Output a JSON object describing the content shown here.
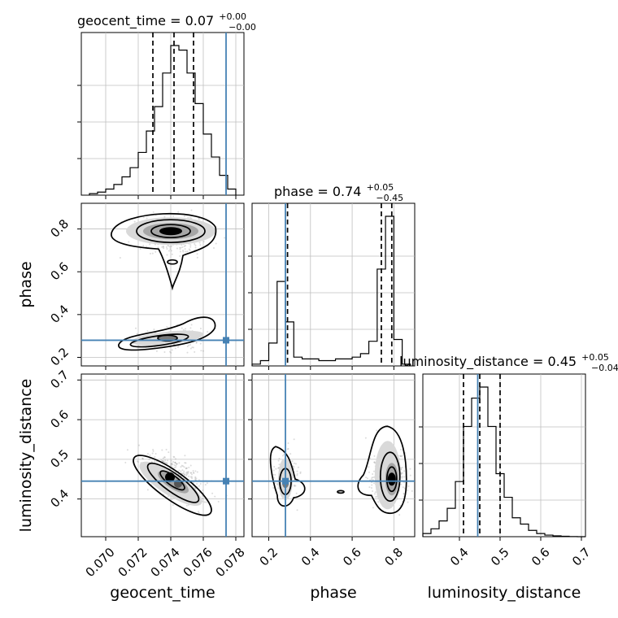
{
  "chart_data": {
    "type": "corner",
    "parameters": [
      "geocent_time",
      "phase",
      "luminosity_distance"
    ],
    "truths": {
      "geocent_time": 0.0774,
      "phase": 0.28,
      "luminosity_distance": 0.445
    },
    "colors": {
      "truth": "#4682b4",
      "hist": "#000000",
      "grid": "#bfbfbf",
      "points": "#9a9a9a"
    },
    "diagonal": [
      {
        "parameter": "geocent_time",
        "title": {
          "prefix": "geocent_time = 0.07",
          "plus": "+0.00",
          "minus": "−0.00"
        },
        "xlim": [
          0.0685,
          0.0785
        ],
        "bin_edges": [
          0.069,
          0.0695,
          0.07,
          0.0705,
          0.071,
          0.0715,
          0.072,
          0.0725,
          0.073,
          0.0735,
          0.074,
          0.0745,
          0.075,
          0.0755,
          0.076,
          0.0765,
          0.077,
          0.0775,
          0.078
        ],
        "counts": [
          0.01,
          0.02,
          0.04,
          0.07,
          0.12,
          0.18,
          0.28,
          0.42,
          0.58,
          0.8,
          0.98,
          0.95,
          0.8,
          0.6,
          0.4,
          0.25,
          0.13,
          0.04
        ],
        "quantiles": [
          0.0729,
          0.0742,
          0.0754
        ],
        "truth": 0.0774
      },
      {
        "parameter": "phase",
        "title": {
          "prefix": "phase = 0.74",
          "plus": "+0.05",
          "minus": "−0.45"
        },
        "xlim": [
          0.12,
          0.9
        ],
        "bin_edges": [
          0.12,
          0.16,
          0.2,
          0.24,
          0.28,
          0.32,
          0.36,
          0.4,
          0.44,
          0.48,
          0.52,
          0.56,
          0.6,
          0.64,
          0.68,
          0.72,
          0.76,
          0.8,
          0.84,
          0.88
        ],
        "counts": [
          0.01,
          0.03,
          0.13,
          0.48,
          0.25,
          0.05,
          0.04,
          0.04,
          0.03,
          0.03,
          0.04,
          0.04,
          0.05,
          0.07,
          0.14,
          0.55,
          0.85,
          0.15,
          0.01
        ],
        "quantiles": [
          0.29,
          0.74,
          0.79
        ],
        "truth": 0.28
      },
      {
        "parameter": "luminosity_distance",
        "title": {
          "prefix": "luminosity_distance = 0.45",
          "plus": "+0.05",
          "minus": "−0.04"
        },
        "xlim": [
          0.31,
          0.71
        ],
        "bin_edges": [
          0.31,
          0.33,
          0.35,
          0.37,
          0.39,
          0.41,
          0.43,
          0.45,
          0.47,
          0.49,
          0.51,
          0.53,
          0.55,
          0.57,
          0.59,
          0.61,
          0.63,
          0.65,
          0.67,
          0.69,
          0.71
        ],
        "counts": [
          0.02,
          0.05,
          0.1,
          0.18,
          0.35,
          0.7,
          0.88,
          0.95,
          0.7,
          0.4,
          0.25,
          0.12,
          0.08,
          0.04,
          0.02,
          0.01,
          0.005,
          0.003,
          0.001,
          0.0
        ],
        "quantiles": [
          0.41,
          0.45,
          0.5
        ],
        "truth": 0.445
      }
    ],
    "ticks": {
      "geocent_time": [
        "0.070",
        "0.072",
        "0.074",
        "0.076",
        "0.078"
      ],
      "phase": [
        "0.2",
        "0.4",
        "0.6",
        "0.8"
      ],
      "luminosity_distance": [
        "0.4",
        "0.5",
        "0.6",
        "0.7"
      ]
    },
    "axis_labels": {
      "geocent_time": "geocent_time",
      "phase": "phase",
      "luminosity_distance": "luminosity_distance"
    },
    "ranges": {
      "geocent_time": [
        0.0685,
        0.0785
      ],
      "phase_y": [
        0.16,
        0.92
      ],
      "phase_x": [
        0.12,
        0.9
      ],
      "luminosity_distance_y": [
        0.305,
        0.715
      ],
      "luminosity_distance_x": [
        0.31,
        0.71
      ]
    },
    "modes": [
      {
        "panel": "geocent_time-phase",
        "x": 0.074,
        "y": 0.79
      },
      {
        "panel": "geocent_time-phase",
        "x": 0.0738,
        "y": 0.29
      },
      {
        "panel": "geocent_time-luminosity_distance",
        "x": 0.074,
        "y": 0.455
      },
      {
        "panel": "phase-luminosity_distance",
        "x": 0.79,
        "y": 0.45
      },
      {
        "panel": "phase-luminosity_distance",
        "x": 0.28,
        "y": 0.44
      }
    ]
  }
}
